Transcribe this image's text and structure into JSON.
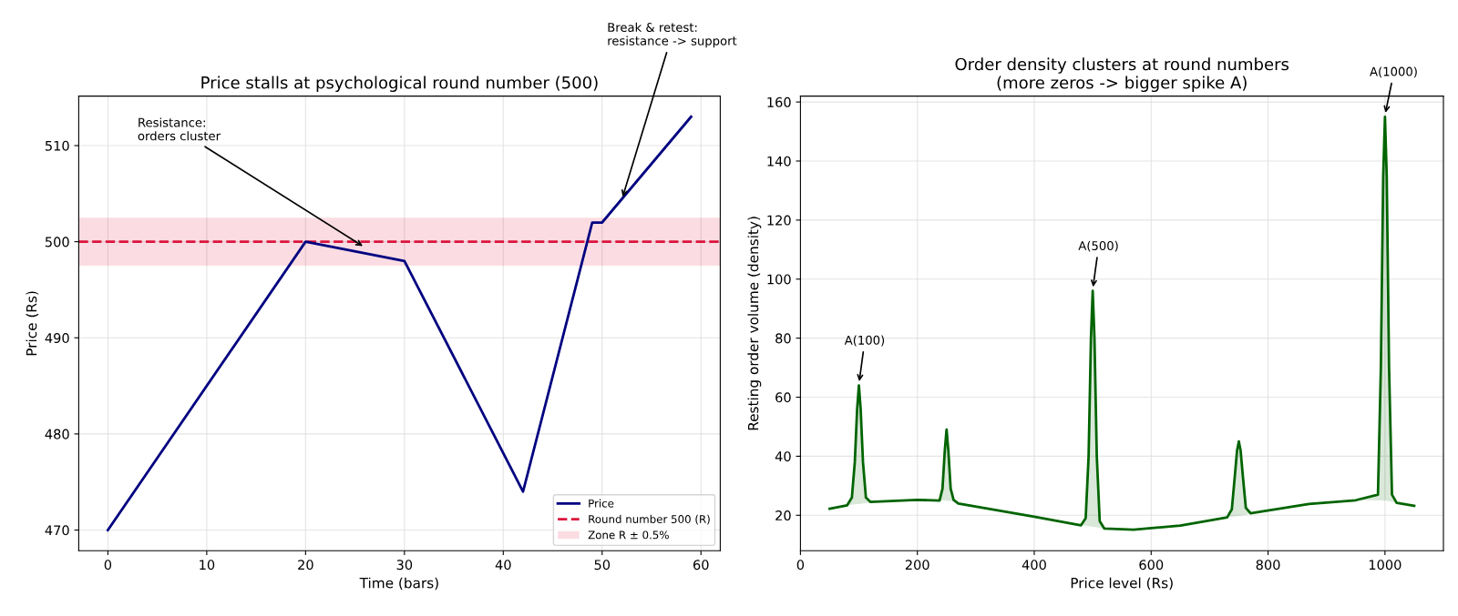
{
  "chart_data": [
    {
      "type": "line",
      "title": "Price stalls at psychological round number (500)",
      "xlabel": "Time (bars)",
      "ylabel": "Price (Rs)",
      "x": [
        0,
        20,
        30,
        42,
        49,
        50,
        59
      ],
      "series": [
        {
          "name": "Price",
          "color": "#000080",
          "values": [
            470,
            500,
            498,
            474,
            502,
            502,
            513
          ]
        }
      ],
      "ref_lines": [
        {
          "axis": "y",
          "value": 500,
          "label": "Round number 500 (R)",
          "color": "#dc143c",
          "line_style": "dashed"
        }
      ],
      "bands": [
        {
          "axis": "y",
          "from": 497.5,
          "to": 502.5,
          "label": "Zone R ± 0.5%",
          "color": "#dc143c"
        }
      ],
      "annotations": [
        {
          "text": "Resistance:\norders cluster",
          "x": 26,
          "y": 499.4
        },
        {
          "text": "Break & retest:\nresistance -> support",
          "x": 52,
          "y": 504.4
        }
      ],
      "xlim": [
        -2.95,
        61.95
      ],
      "ylim": [
        467.85,
        515.15
      ],
      "xticks": [
        0,
        10,
        20,
        30,
        40,
        50,
        60
      ],
      "yticks": [
        470,
        480,
        490,
        500,
        510
      ],
      "grid": true,
      "legend": "bottom right",
      "line_style": "solid",
      "marker": "none"
    },
    {
      "type": "line",
      "title": "Order density clusters at round numbers\n(more zeros -> bigger spike A)",
      "xlabel": "Price level (Rs)",
      "ylabel": "Resting order volume (density)",
      "x": [
        50,
        80,
        88,
        93,
        97,
        100,
        103,
        107,
        112,
        120,
        200,
        238,
        243,
        247,
        250,
        253,
        257,
        262,
        270,
        400,
        480,
        488,
        493,
        497,
        500,
        503,
        507,
        512,
        520,
        570,
        650,
        730,
        738,
        743,
        747,
        750,
        753,
        757,
        762,
        770,
        870,
        950,
        988,
        993,
        997,
        1000,
        1003,
        1007,
        1012,
        1020,
        1050
      ],
      "series": [
        {
          "color": "#006400",
          "values": [
            22.2,
            23.4,
            26,
            38,
            56,
            64,
            56,
            38,
            26,
            24.5,
            25.2,
            25,
            29,
            42,
            49,
            42,
            29,
            25.2,
            24,
            19.5,
            16.6,
            19,
            40,
            80,
            96,
            80,
            40,
            18,
            15.5,
            15.1,
            16.5,
            19.3,
            22,
            33,
            42,
            45,
            42,
            33,
            22.5,
            20.7,
            23.8,
            25.1,
            27,
            70,
            135,
            155,
            135,
            70,
            27,
            24.2,
            23.2
          ],
          "lower": [
            22.2,
            23.4,
            23.6,
            23.7,
            23.8,
            23.8,
            23.9,
            24,
            24.1,
            24.3,
            25.2,
            25,
            25,
            25,
            25,
            24.9,
            24.8,
            24.7,
            24,
            19.5,
            16.6,
            16.5,
            16.3,
            16.2,
            16.1,
            16,
            15.9,
            15.7,
            15.5,
            15.1,
            16.5,
            19.3,
            19.5,
            19.6,
            19.7,
            19.8,
            19.9,
            20,
            20.2,
            20.7,
            23.8,
            25.1,
            25,
            25,
            25,
            25,
            24.9,
            24.8,
            24.6,
            24.2,
            23.2
          ],
          "upper": [
            22.2,
            23.4,
            26,
            38,
            56,
            64,
            56,
            38,
            26,
            24.5,
            25.2,
            25,
            29,
            42,
            49,
            42,
            29,
            25.2,
            24,
            19.5,
            16.6,
            19,
            40,
            80,
            96,
            80,
            40,
            18,
            15.5,
            15.1,
            16.5,
            19.3,
            22,
            33,
            42,
            45,
            42,
            33,
            22.5,
            20.7,
            23.8,
            25.1,
            27,
            70,
            135,
            155,
            135,
            70,
            27,
            24.2,
            23.2
          ]
        }
      ],
      "annotations": [
        {
          "text": "A(100)",
          "x": 100,
          "y": 64.5
        },
        {
          "text": "A(500)",
          "x": 500,
          "y": 96.5
        },
        {
          "text": "A(1000)",
          "x": 1000,
          "y": 155.5
        }
      ],
      "xlim": [
        0,
        1100
      ],
      "ylim": [
        8,
        162
      ],
      "xticks": [
        0,
        200,
        400,
        600,
        800,
        1000
      ],
      "yticks": [
        20,
        40,
        60,
        80,
        100,
        120,
        140,
        160
      ],
      "grid": true,
      "line_style": "solid",
      "marker": "none"
    }
  ]
}
